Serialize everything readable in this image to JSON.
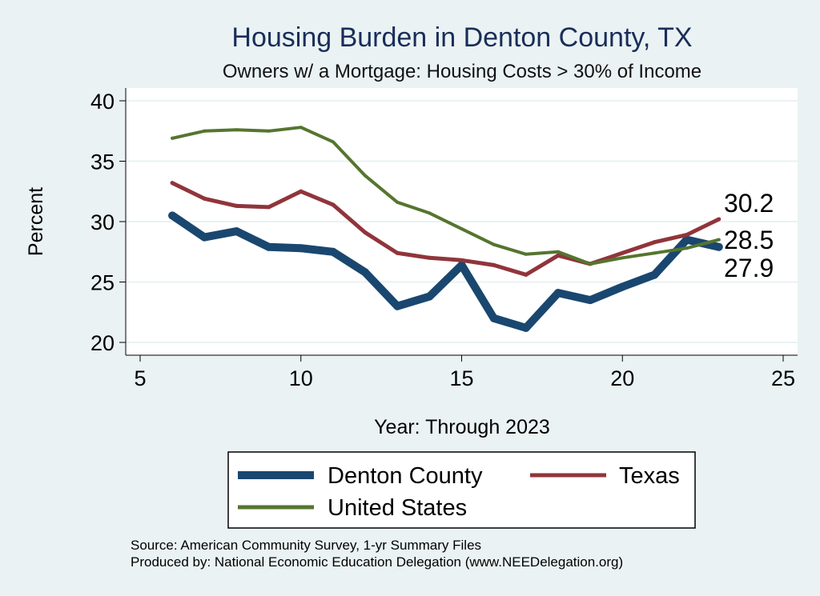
{
  "chart_data": {
    "type": "line",
    "title": "Housing Burden in Denton County, TX",
    "subtitle": "Owners w/ a Mortgage: Housing Costs > 30% of Income",
    "xlabel": "Year: Through 2023",
    "ylabel": "Percent",
    "xlim": [
      5,
      25
    ],
    "ylim": [
      20,
      40
    ],
    "x_ticks": [
      "5",
      "10",
      "15",
      "20",
      "25"
    ],
    "y_ticks": [
      "20",
      "25",
      "30",
      "35",
      "40"
    ],
    "grid": true,
    "x": [
      6,
      7,
      8,
      9,
      10,
      11,
      12,
      13,
      14,
      15,
      16,
      17,
      18,
      19,
      20,
      21,
      22,
      23
    ],
    "series": [
      {
        "name": "Denton County",
        "color": "#1a476f",
        "values": [
          30.5,
          28.7,
          29.2,
          27.9,
          27.8,
          27.5,
          25.8,
          23.0,
          23.8,
          26.4,
          22.0,
          21.2,
          24.1,
          23.5,
          24.6,
          25.6,
          28.5,
          27.9
        ],
        "end_label": "27.9"
      },
      {
        "name": "Texas",
        "color": "#90353b",
        "values": [
          33.2,
          31.9,
          31.3,
          31.2,
          32.5,
          31.4,
          29.1,
          27.4,
          27.0,
          26.8,
          26.4,
          25.6,
          27.2,
          26.5,
          27.4,
          28.3,
          28.9,
          30.2
        ],
        "end_label": "30.2"
      },
      {
        "name": "United States",
        "color": "#55752f",
        "values": [
          36.9,
          37.5,
          37.6,
          37.5,
          37.8,
          36.6,
          33.8,
          31.6,
          30.7,
          29.4,
          28.1,
          27.3,
          27.5,
          26.5,
          27.0,
          27.4,
          27.8,
          28.5
        ],
        "end_label": "28.5"
      }
    ],
    "legend": [
      "Denton County",
      "Texas",
      "United States"
    ],
    "legend_position": "bottom"
  },
  "notes": {
    "source": "Source: American Community Survey, 1-yr Summary Files",
    "produced": "Produced by: National Economic Education Delegation (www.NEEDelegation.org)"
  }
}
